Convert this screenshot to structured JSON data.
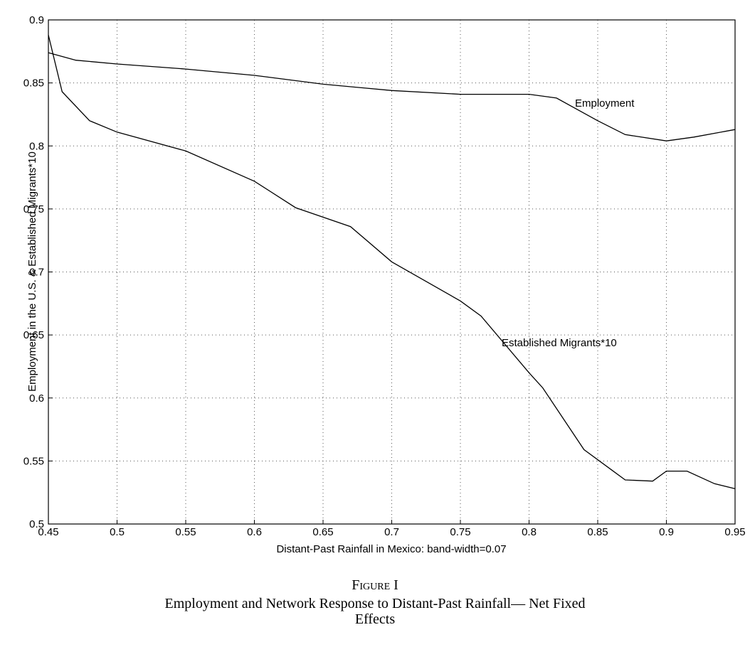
{
  "chart_data": {
    "type": "line",
    "x_label": "Distant-Past Rainfall in Mexico: band-width=0.07",
    "y_label": "Employment in the U.S. & Established Migrants*10",
    "figure_label": "Figure I",
    "title": "Employment and Network Response to Distant-Past Rainfall— Net Fixed Effects",
    "xlim": [
      0.45,
      0.95
    ],
    "ylim": [
      0.5,
      0.9
    ],
    "xticks": [
      0.45,
      0.5,
      0.55,
      0.6,
      0.65,
      0.7,
      0.75,
      0.8,
      0.85,
      0.9,
      0.95
    ],
    "yticks": [
      0.5,
      0.55,
      0.6,
      0.65,
      0.7,
      0.75,
      0.8,
      0.85,
      0.9
    ],
    "grid": true,
    "series": [
      {
        "name": "Employment",
        "color": "#000000",
        "x": [
          0.45,
          0.47,
          0.5,
          0.55,
          0.6,
          0.65,
          0.7,
          0.75,
          0.8,
          0.82,
          0.85,
          0.87,
          0.9,
          0.92,
          0.95
        ],
        "values": [
          0.874,
          0.868,
          0.865,
          0.861,
          0.856,
          0.849,
          0.844,
          0.841,
          0.841,
          0.838,
          0.82,
          0.809,
          0.804,
          0.807,
          0.813
        ]
      },
      {
        "name": "Established Migrants*10",
        "color": "#000000",
        "x": [
          0.45,
          0.46,
          0.48,
          0.5,
          0.55,
          0.6,
          0.63,
          0.67,
          0.7,
          0.75,
          0.765,
          0.8,
          0.81,
          0.84,
          0.86,
          0.87,
          0.89,
          0.9,
          0.915,
          0.935,
          0.95
        ],
        "values": [
          0.888,
          0.843,
          0.82,
          0.811,
          0.796,
          0.772,
          0.751,
          0.736,
          0.708,
          0.677,
          0.665,
          0.62,
          0.608,
          0.559,
          0.543,
          0.535,
          0.534,
          0.542,
          0.542,
          0.532,
          0.528
        ]
      }
    ]
  }
}
